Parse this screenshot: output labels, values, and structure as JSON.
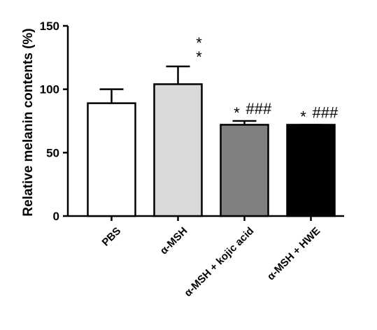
{
  "chart_data": {
    "type": "bar",
    "title": "",
    "xlabel": "",
    "ylabel": "Relative melanin contents (%)",
    "ylim": [
      0,
      150
    ],
    "yticks": [
      0,
      50,
      100,
      150
    ],
    "categories": [
      "PBS",
      "α-MSH",
      "α-MSH + kojic acid",
      "α-MSH + HWE"
    ],
    "values": [
      89,
      104,
      72,
      72
    ],
    "errors": [
      11,
      14,
      3,
      0
    ],
    "significance": [
      [
        "",
        ""
      ],
      [
        "*",
        "*"
      ],
      [
        "*",
        "###"
      ],
      [
        "*",
        "###"
      ]
    ],
    "colors": [
      "#ffffff",
      "#d9d9d9",
      "#808080",
      "#000000"
    ],
    "grid": false
  }
}
